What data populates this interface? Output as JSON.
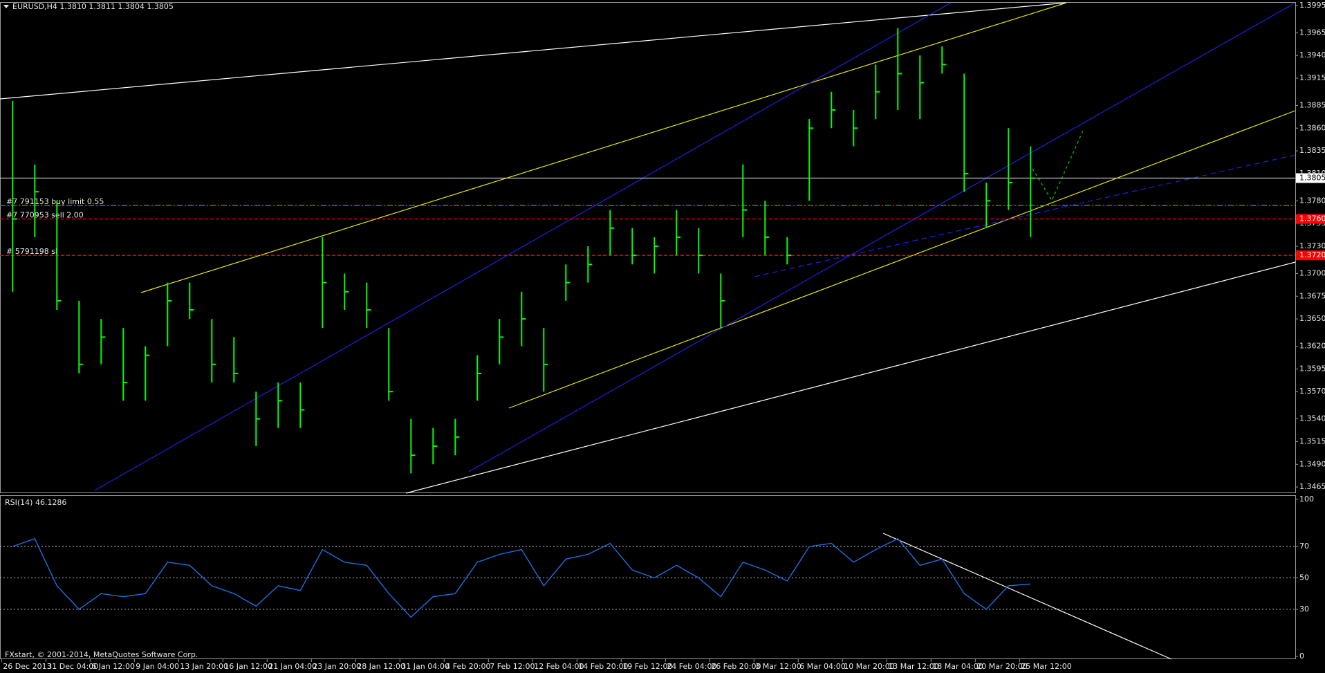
{
  "chart_data": [
    {
      "type": "hlc",
      "title": "EURUSD,H4  1.3810 1.3811 1.3804 1.3805",
      "color": "#00ff00",
      "categories": [
        "26 Dec 2013",
        null,
        "31 Dec 04:00",
        null,
        "6 Jan 12:00",
        null,
        "9 Jan 04:00",
        null,
        "13 Jan 20:00",
        null,
        "16 Jan 12:00",
        null,
        "21 Jan 04:00",
        null,
        "23 Jan 20:00",
        null,
        "28 Jan 12:00",
        null,
        "31 Jan 04:00",
        null,
        "4 Feb 20:00",
        null,
        "7 Feb 12:00",
        null,
        "12 Feb 04:00",
        null,
        "14 Feb 20:00",
        null,
        "19 Feb 12:00",
        null,
        "24 Feb 04:00",
        null,
        "26 Feb 20:00",
        null,
        "3 Mar 12:00",
        null,
        "6 Mar 04:00",
        null,
        "10 Mar 20:00",
        null,
        "13 Mar 12:00",
        null,
        "18 Mar 04:00",
        null,
        "20 Mar 20:00",
        null,
        "25 Mar 12:00",
        null
      ],
      "high": [
        1.389,
        1.382,
        1.378,
        1.367,
        1.365,
        1.364,
        1.362,
        1.369,
        1.369,
        1.365,
        1.363,
        1.357,
        1.358,
        1.358,
        1.374,
        1.37,
        1.369,
        1.364,
        1.354,
        1.353,
        1.354,
        1.361,
        1.365,
        1.368,
        1.364,
        1.371,
        1.373,
        1.377,
        1.375,
        1.374,
        1.377,
        1.375,
        1.37,
        1.382,
        1.378,
        1.374,
        1.387,
        1.39,
        1.388,
        1.393,
        1.397,
        1.394,
        1.395,
        1.392,
        1.38,
        1.386,
        1.384,
        null
      ],
      "low": [
        1.368,
        1.374,
        1.366,
        1.359,
        1.36,
        1.356,
        1.356,
        1.362,
        1.365,
        1.358,
        1.358,
        1.351,
        1.353,
        1.353,
        1.364,
        1.366,
        1.364,
        1.356,
        1.348,
        1.349,
        1.35,
        1.356,
        1.36,
        1.362,
        1.357,
        1.367,
        1.369,
        1.372,
        1.371,
        1.37,
        1.372,
        1.37,
        1.364,
        1.374,
        1.372,
        1.371,
        1.378,
        1.386,
        1.384,
        1.387,
        1.388,
        1.387,
        1.392,
        1.379,
        1.375,
        1.377,
        1.374,
        null
      ],
      "close": [
        1.376,
        1.379,
        1.367,
        1.36,
        1.363,
        1.358,
        1.361,
        1.367,
        1.366,
        1.36,
        1.359,
        1.354,
        1.356,
        1.355,
        1.369,
        1.368,
        1.366,
        1.357,
        1.35,
        1.351,
        1.352,
        1.359,
        1.363,
        1.365,
        1.36,
        1.369,
        1.371,
        1.375,
        1.372,
        1.373,
        1.374,
        1.372,
        1.367,
        1.377,
        1.374,
        1.372,
        1.386,
        1.388,
        1.386,
        1.39,
        1.392,
        1.391,
        1.393,
        1.381,
        1.378,
        1.38,
        1.3805,
        null
      ],
      "ylim": [
        1.3459,
        1.3998
      ],
      "yticks": [
        1.3995,
        1.3965,
        {
          "value": 1.394,
          "label": "1.3940"
        },
        1.3915,
        1.3885,
        {
          "value": 1.386,
          "label": "1.3860"
        },
        1.3835,
        {
          "value": 1.381,
          "label": "1.3810"
        },
        {
          "value": 1.378,
          "label": "1.3780"
        },
        1.3755,
        {
          "value": 1.373,
          "label": "1.3730"
        },
        {
          "value": 1.37,
          "label": "1.3700"
        },
        1.3675,
        {
          "value": 1.365,
          "label": "1.3650"
        },
        {
          "value": 1.362,
          "label": "1.3620"
        },
        1.3595,
        {
          "value": 1.357,
          "label": "1.3570"
        },
        {
          "value": 1.354,
          "label": "1.3540"
        },
        1.3515,
        {
          "value": 1.349,
          "label": "1.3490"
        },
        1.3465
      ],
      "current_price": 1.3805,
      "order_lines": [
        {
          "label": "#7 791153 buy limit 0.55",
          "price": 1.3775,
          "color": "#00c000"
        },
        {
          "label": "#7 770953 sell 2.00",
          "price": {
            "value": 1.376,
            "label": "1.3760"
          },
          "color": "#ff0000"
        },
        {
          "label": "# 5791198 sl",
          "price": {
            "value": 1.372,
            "label": "1.3720"
          },
          "color": "#ff0000"
        }
      ]
    },
    {
      "type": "line",
      "title": "RSI(14) 46.1286",
      "color": "#1e6fe0",
      "values": [
        70,
        75,
        45,
        30,
        40,
        38,
        40,
        60,
        58,
        45,
        40,
        32,
        45,
        42,
        68,
        60,
        58,
        40,
        25,
        38,
        40,
        60,
        65,
        68,
        45,
        62,
        65,
        72,
        55,
        50,
        58,
        50,
        38,
        60,
        55,
        48,
        70,
        72,
        60,
        68,
        75,
        58,
        62,
        40,
        30,
        45,
        46.1286,
        null
      ],
      "ylim": [
        0,
        100
      ],
      "yticks": [
        100,
        70,
        50,
        30,
        0
      ],
      "levels": [
        70,
        50,
        30
      ]
    }
  ],
  "footer": "FXstart, © 2001-2014, MetaQuotes Software Corp."
}
